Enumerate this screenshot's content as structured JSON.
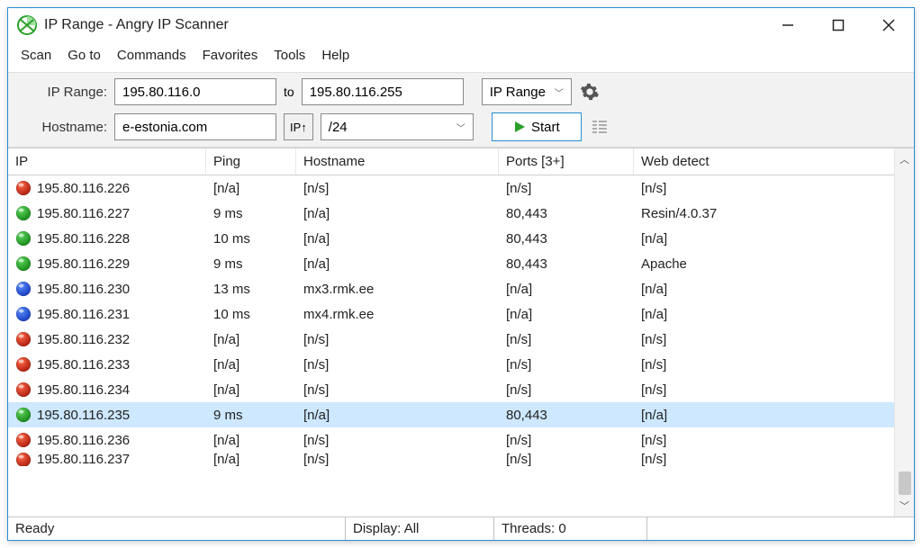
{
  "window": {
    "title": "IP Range - Angry IP Scanner"
  },
  "menu": {
    "items": [
      "Scan",
      "Go to",
      "Commands",
      "Favorites",
      "Tools",
      "Help"
    ]
  },
  "toolbar": {
    "ip_range_label": "IP Range:",
    "ip_from": "195.80.116.0",
    "to_label": "to",
    "ip_to": "195.80.116.255",
    "range_combo": "IP Range",
    "hostname_label": "Hostname:",
    "hostname": "e-estonia.com",
    "ip_up_label": "IP↑",
    "netmask": "/24",
    "start_label": "Start"
  },
  "columns": [
    "IP",
    "Ping",
    "Hostname",
    "Ports [3+]",
    "Web detect"
  ],
  "rows": [
    {
      "status": "red",
      "ip": "195.80.116.226",
      "ping": "[n/a]",
      "hostname": "[n/s]",
      "ports": "[n/s]",
      "web": "[n/s]",
      "selected": false
    },
    {
      "status": "green",
      "ip": "195.80.116.227",
      "ping": "9 ms",
      "hostname": "[n/a]",
      "ports": "80,443",
      "web": "Resin/4.0.37",
      "selected": false
    },
    {
      "status": "green",
      "ip": "195.80.116.228",
      "ping": "10 ms",
      "hostname": "[n/a]",
      "ports": "80,443",
      "web": "[n/a]",
      "selected": false
    },
    {
      "status": "green",
      "ip": "195.80.116.229",
      "ping": "9 ms",
      "hostname": "[n/a]",
      "ports": "80,443",
      "web": "Apache",
      "selected": false
    },
    {
      "status": "blue",
      "ip": "195.80.116.230",
      "ping": "13 ms",
      "hostname": "mx3.rmk.ee",
      "ports": "[n/a]",
      "web": "[n/a]",
      "selected": false
    },
    {
      "status": "blue",
      "ip": "195.80.116.231",
      "ping": "10 ms",
      "hostname": "mx4.rmk.ee",
      "ports": "[n/a]",
      "web": "[n/a]",
      "selected": false
    },
    {
      "status": "red",
      "ip": "195.80.116.232",
      "ping": "[n/a]",
      "hostname": "[n/s]",
      "ports": "[n/s]",
      "web": "[n/s]",
      "selected": false
    },
    {
      "status": "red",
      "ip": "195.80.116.233",
      "ping": "[n/a]",
      "hostname": "[n/s]",
      "ports": "[n/s]",
      "web": "[n/s]",
      "selected": false
    },
    {
      "status": "red",
      "ip": "195.80.116.234",
      "ping": "[n/a]",
      "hostname": "[n/s]",
      "ports": "[n/s]",
      "web": "[n/s]",
      "selected": false
    },
    {
      "status": "green",
      "ip": "195.80.116.235",
      "ping": "9 ms",
      "hostname": "[n/a]",
      "ports": "80,443",
      "web": "[n/a]",
      "selected": true
    },
    {
      "status": "red",
      "ip": "195.80.116.236",
      "ping": "[n/a]",
      "hostname": "[n/s]",
      "ports": "[n/s]",
      "web": "[n/s]",
      "selected": false
    },
    {
      "status": "red",
      "ip": "195.80.116.237",
      "ping": "[n/a]",
      "hostname": "[n/s]",
      "ports": "[n/s]",
      "web": "[n/s]",
      "selected": false,
      "partial": true
    }
  ],
  "status_colors": {
    "red": {
      "light": "#ff6a4a",
      "dark": "#b02010"
    },
    "green": {
      "light": "#5ed85e",
      "dark": "#1a8a1a"
    },
    "blue": {
      "light": "#5a8cff",
      "dark": "#1a3fbf"
    }
  },
  "statusbar": {
    "ready": "Ready",
    "display": "Display: All",
    "threads": "Threads: 0"
  },
  "colors": {
    "window_border": "#2a8dd4",
    "selected_row": "#cde8ff",
    "toolbar_bg": "#f2f2f2"
  }
}
